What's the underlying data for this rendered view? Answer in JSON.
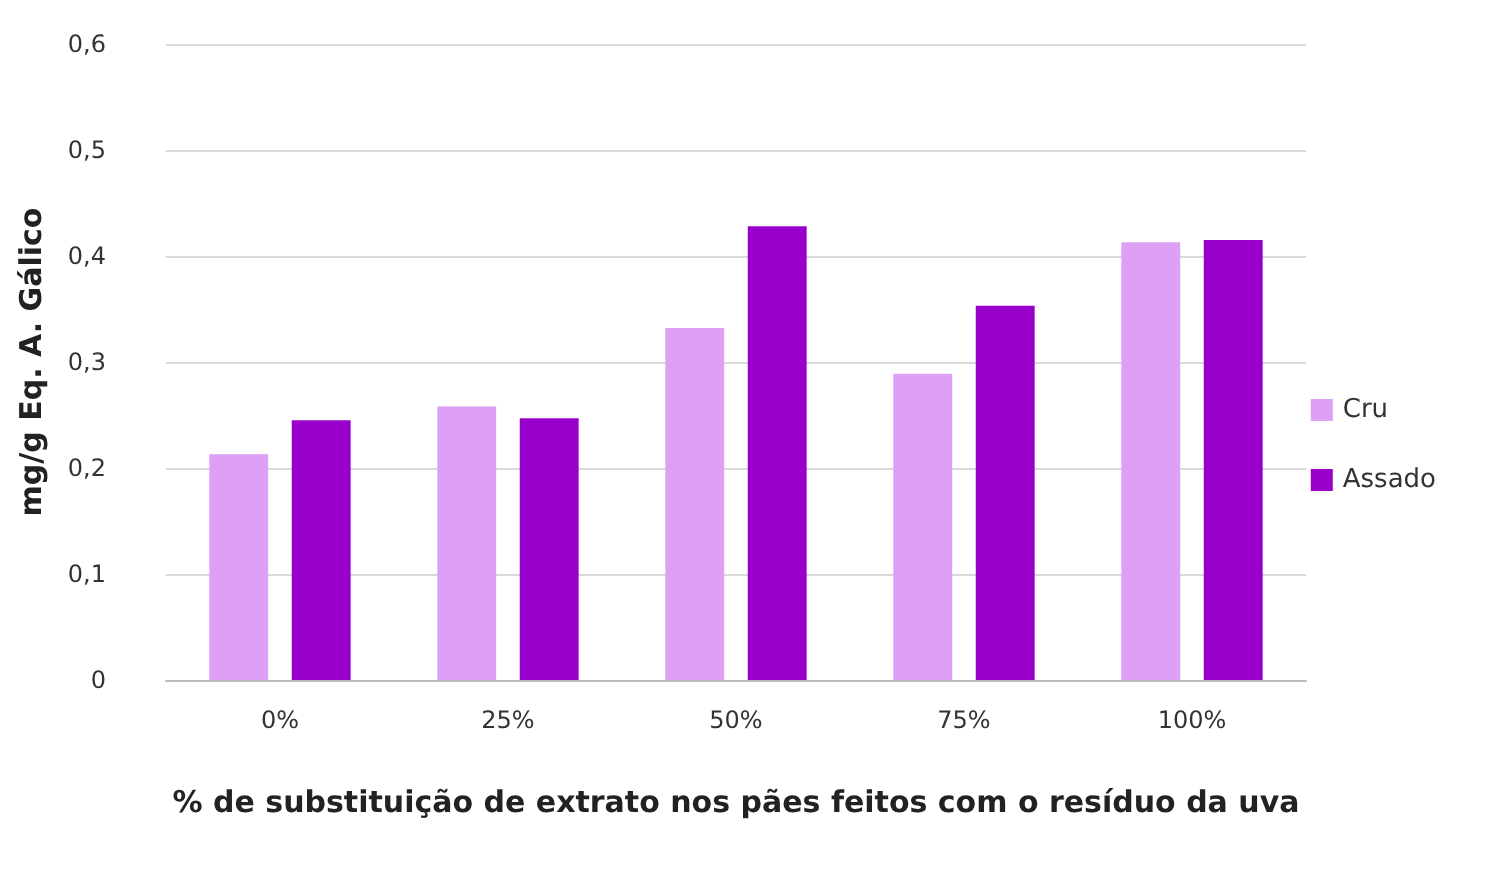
{
  "chart_data": {
    "type": "bar",
    "xlabel": "% de substituição de extrato nos pães feitos com o resíduo da uva",
    "ylabel": "mg/g Eq. A. Gálico",
    "categories": [
      "0%",
      "25%",
      "50%",
      "75%",
      "100%"
    ],
    "series": [
      {
        "name": "Cru",
        "color": "#dda0f5",
        "values": [
          0.213,
          0.258,
          0.332,
          0.289,
          0.413
        ]
      },
      {
        "name": "Assado",
        "color": "#9900cc",
        "values": [
          0.245,
          0.247,
          0.428,
          0.353,
          0.415
        ]
      }
    ],
    "ylim": [
      0,
      0.6
    ],
    "yticks": [
      {
        "value": 0,
        "label": "0"
      },
      {
        "value": 0.1,
        "label": "0,1"
      },
      {
        "value": 0.2,
        "label": "0,2"
      },
      {
        "value": 0.3,
        "label": "0,3"
      },
      {
        "value": 0.4,
        "label": "0,4"
      },
      {
        "value": 0.5,
        "label": "0,5"
      },
      {
        "value": 0.6,
        "label": "0,6"
      }
    ],
    "grid": "y",
    "legend": "right"
  }
}
